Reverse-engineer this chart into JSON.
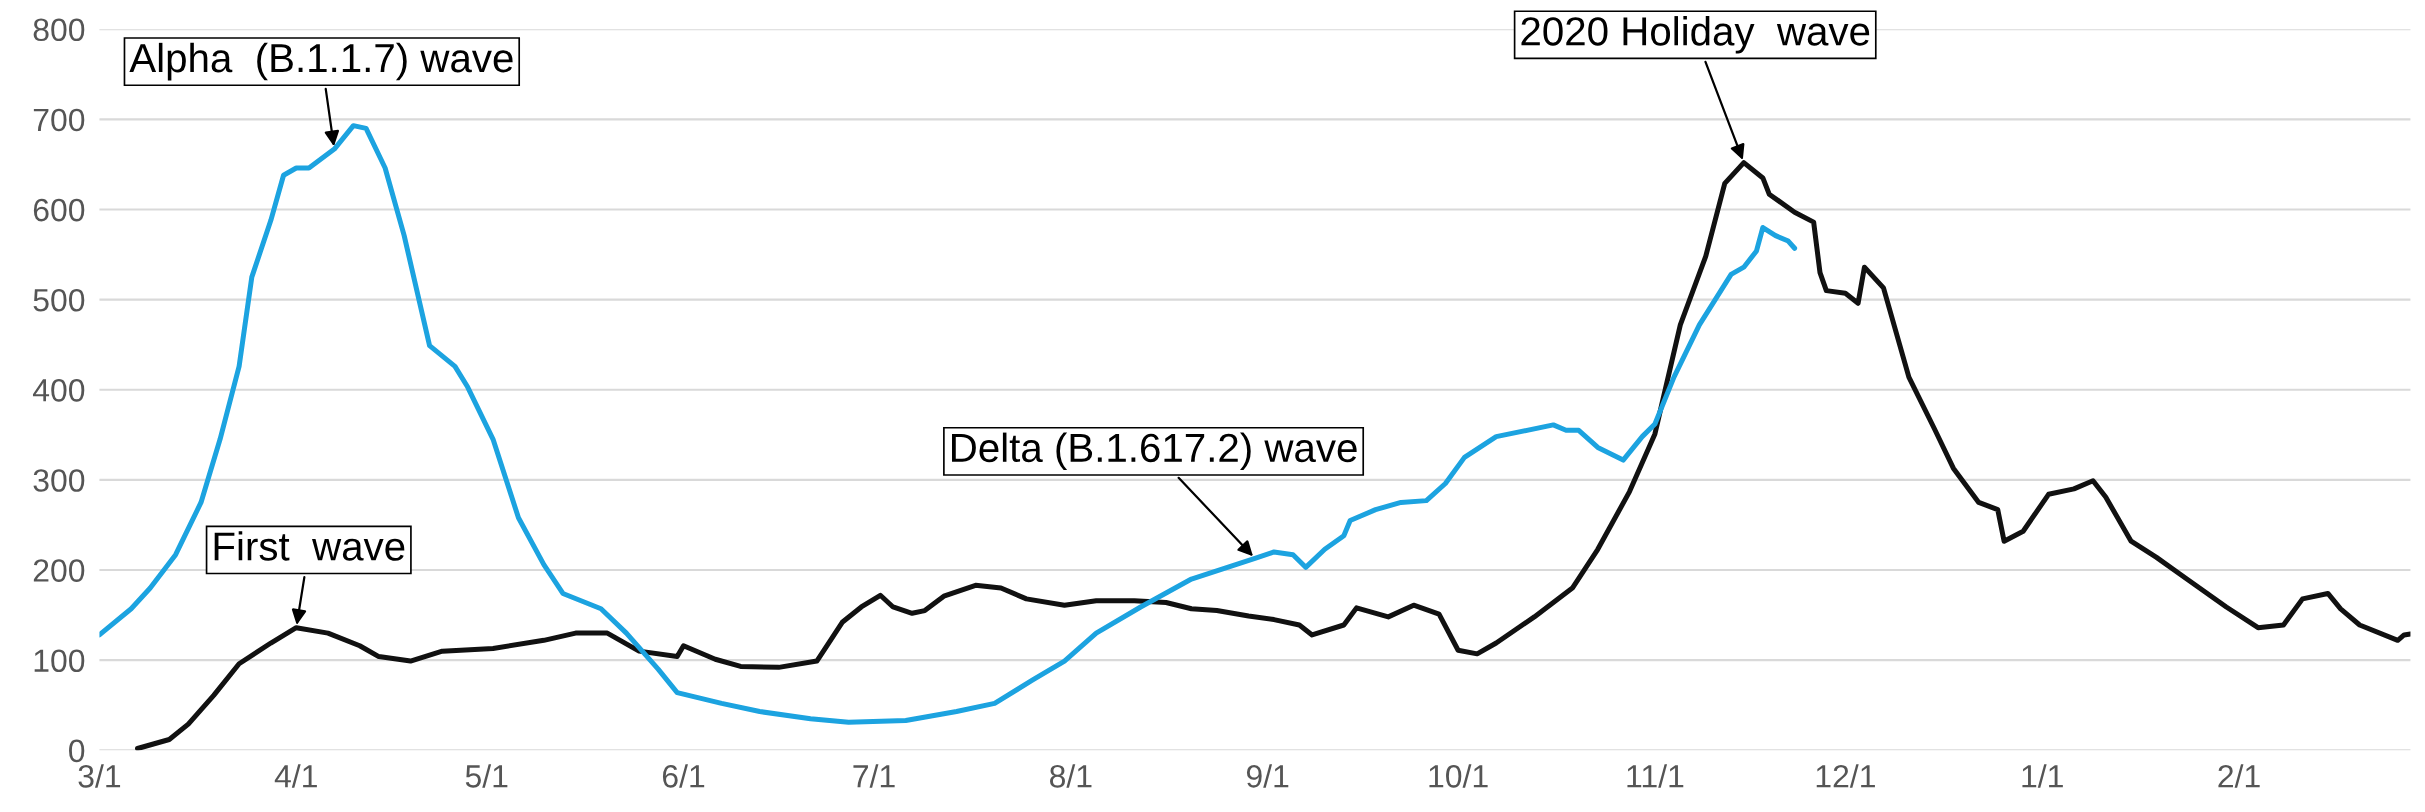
{
  "chart_data": {
    "type": "line",
    "xlim": [
      "2020-03-01",
      "2021-02-28"
    ],
    "ylim": [
      0,
      800
    ],
    "xticks": [
      {
        "value": "2020-03-01",
        "label": "3/1"
      },
      {
        "value": "2020-04-01",
        "label": "4/1"
      },
      {
        "value": "2020-05-01",
        "label": "5/1"
      },
      {
        "value": "2020-06-01",
        "label": "6/1"
      },
      {
        "value": "2020-07-01",
        "label": "7/1"
      },
      {
        "value": "2020-08-01",
        "label": "8/1"
      },
      {
        "value": "2020-09-01",
        "label": "9/1"
      },
      {
        "value": "2020-10-01",
        "label": "10/1"
      },
      {
        "value": "2020-11-01",
        "label": "11/1"
      },
      {
        "value": "2020-12-01",
        "label": "12/1"
      },
      {
        "value": "2021-01-01",
        "label": "1/1"
      },
      {
        "value": "2021-02-01",
        "label": "2/1"
      }
    ],
    "yticks": [
      0,
      100,
      200,
      300,
      400,
      500,
      600,
      700,
      800
    ],
    "grid": "y",
    "legend": false,
    "marker": "none",
    "line_style": "solid",
    "series": [
      {
        "color": "#111111",
        "x": [
          "2020-03-07",
          "2020-03-12",
          "2020-03-15",
          "2020-03-19",
          "2020-03-23",
          "2020-03-28",
          "2020-04-01",
          "2020-04-06",
          "2020-04-11",
          "2020-04-14",
          "2020-04-19",
          "2020-04-24",
          "2020-05-02",
          "2020-05-10",
          "2020-05-15",
          "2020-05-20",
          "2020-05-25",
          "2020-05-31",
          "2020-06-01",
          "2020-06-06",
          "2020-06-10",
          "2020-06-16",
          "2020-06-22",
          "2020-06-26",
          "2020-06-29",
          "2020-07-02",
          "2020-07-04",
          "2020-07-07",
          "2020-07-09",
          "2020-07-12",
          "2020-07-17",
          "2020-07-21",
          "2020-07-25",
          "2020-07-31",
          "2020-08-05",
          "2020-08-11",
          "2020-08-16",
          "2020-08-20",
          "2020-08-24",
          "2020-08-29",
          "2020-09-02",
          "2020-09-06",
          "2020-09-08",
          "2020-09-13",
          "2020-09-15",
          "2020-09-20",
          "2020-09-24",
          "2020-09-28",
          "2020-10-01",
          "2020-10-04",
          "2020-10-07",
          "2020-10-13",
          "2020-10-19",
          "2020-10-23",
          "2020-10-28",
          "2020-11-01",
          "2020-11-05",
          "2020-11-09",
          "2020-11-12",
          "2020-11-15",
          "2020-11-18",
          "2020-11-19",
          "2020-11-23",
          "2020-11-26",
          "2020-11-27",
          "2020-11-28",
          "2020-12-01",
          "2020-12-03",
          "2020-12-04",
          "2020-12-07",
          "2020-12-11",
          "2020-12-15",
          "2020-12-18",
          "2020-12-22",
          "2020-12-25",
          "2020-12-26",
          "2020-12-29",
          "2021-01-02",
          "2021-01-06",
          "2021-01-09",
          "2021-01-11",
          "2021-01-15",
          "2021-01-19",
          "2021-01-23",
          "2021-01-30",
          "2021-02-04",
          "2021-02-08",
          "2021-02-11",
          "2021-02-15",
          "2021-02-17",
          "2021-02-20",
          "2021-02-26",
          "2021-02-27",
          "2021-02-28"
        ],
        "values": [
          2,
          12,
          29,
          61,
          96,
          119,
          136,
          130,
          116,
          104,
          99,
          110,
          113,
          122,
          130,
          130,
          110,
          104,
          116,
          101,
          93,
          92,
          99,
          142,
          159,
          172,
          159,
          152,
          155,
          171,
          183,
          180,
          168,
          161,
          166,
          166,
          164,
          157,
          155,
          149,
          145,
          139,
          128,
          139,
          158,
          148,
          161,
          151,
          111,
          107,
          119,
          148,
          180,
          223,
          287,
          351,
          472,
          548,
          629,
          652,
          635,
          617,
          597,
          586,
          530,
          510,
          507,
          496,
          536,
          513,
          414,
          357,
          313,
          275,
          267,
          232,
          243,
          284,
          290,
          299,
          281,
          232,
          214,
          194,
          159,
          136,
          139,
          168,
          174,
          157,
          139,
          122,
          128,
          129
        ]
      },
      {
        "color": "#1ca3e0",
        "x": [
          "2020-03-01",
          "2020-03-06",
          "2020-03-09",
          "2020-03-13",
          "2020-03-17",
          "2020-03-20",
          "2020-03-23",
          "2020-03-25",
          "2020-03-28",
          "2020-03-30",
          "2020-04-01",
          "2020-04-03",
          "2020-04-07",
          "2020-04-10",
          "2020-04-12",
          "2020-04-15",
          "2020-04-18",
          "2020-04-22",
          "2020-04-26",
          "2020-04-28",
          "2020-05-02",
          "2020-05-06",
          "2020-05-10",
          "2020-05-13",
          "2020-05-19",
          "2020-05-23",
          "2020-05-28",
          "2020-05-31",
          "2020-06-07",
          "2020-06-13",
          "2020-06-21",
          "2020-06-27",
          "2020-07-06",
          "2020-07-14",
          "2020-07-20",
          "2020-07-26",
          "2020-07-31",
          "2020-08-05",
          "2020-08-12",
          "2020-08-20",
          "2020-08-30",
          "2020-09-02",
          "2020-09-05",
          "2020-09-07",
          "2020-09-10",
          "2020-09-13",
          "2020-09-14",
          "2020-09-18",
          "2020-09-22",
          "2020-09-26",
          "2020-09-29",
          "2020-10-02",
          "2020-10-07",
          "2020-10-16",
          "2020-10-18",
          "2020-10-20",
          "2020-10-23",
          "2020-10-27",
          "2020-10-30",
          "2020-11-01",
          "2020-11-04",
          "2020-11-08",
          "2020-11-13",
          "2020-11-15",
          "2020-11-17",
          "2020-11-18",
          "2020-11-20",
          "2020-11-22",
          "2020-11-23"
        ],
        "values": [
          128,
          157,
          180,
          217,
          275,
          345,
          426,
          525,
          588,
          638,
          646,
          646,
          667,
          693,
          690,
          646,
          571,
          449,
          426,
          403,
          345,
          258,
          206,
          174,
          157,
          130,
          90,
          64,
          52,
          43,
          35,
          31,
          33,
          43,
          52,
          78,
          99,
          130,
          159,
          190,
          213,
          220,
          217,
          203,
          223,
          238,
          255,
          267,
          275,
          277,
          296,
          325,
          348,
          361,
          355,
          355,
          336,
          322,
          348,
          362,
          414,
          472,
          528,
          536,
          554,
          580,
          571,
          565,
          557
        ]
      }
    ],
    "annotations": [
      {
        "text": "Alpha  (B.1.1.7) wave",
        "x": "2020-04-07",
        "y": 667
      },
      {
        "text": "First  wave",
        "x": "2020-04-01",
        "y": 136
      },
      {
        "text": "Delta (B.1.617.2) wave",
        "x": "2020-08-30",
        "y": 213
      },
      {
        "text": "2020 Holiday  wave",
        "x": "2020-11-15",
        "y": 652
      }
    ]
  }
}
